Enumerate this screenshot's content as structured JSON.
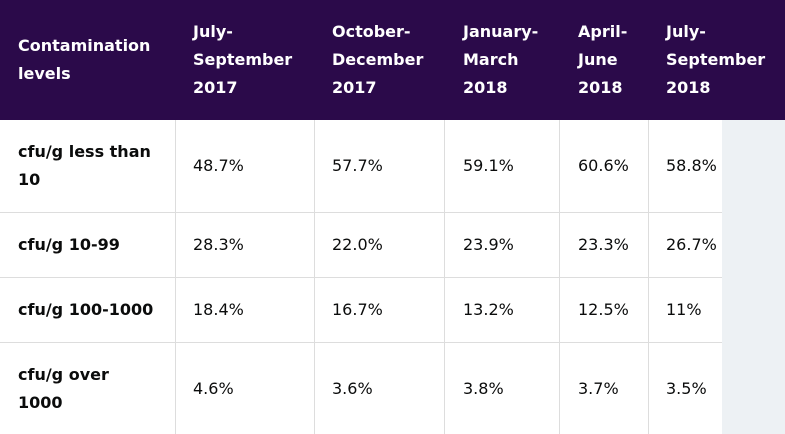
{
  "table": {
    "header": {
      "corner": [
        "Contamination",
        "levels"
      ],
      "columns": [
        [
          "July-",
          "September",
          "2017"
        ],
        [
          "October-",
          "December",
          "2017"
        ],
        [
          "January-",
          "March",
          "2018"
        ],
        [
          "April-",
          "June",
          "2018"
        ],
        [
          "July-",
          "September",
          "2018"
        ]
      ]
    },
    "rows": [
      {
        "label": [
          "cfu/g less than",
          "10"
        ],
        "values": [
          "48.7%",
          "57.7%",
          "59.1%",
          "60.6%",
          "58.8%"
        ]
      },
      {
        "label": [
          "cfu/g 10-99"
        ],
        "values": [
          "28.3%",
          "22.0%",
          "23.9%",
          "23.3%",
          "26.7%"
        ]
      },
      {
        "label": [
          "cfu/g 100-1000"
        ],
        "values": [
          "18.4%",
          "16.7%",
          "13.2%",
          "12.5%",
          "11%"
        ]
      },
      {
        "label": [
          "cfu/g over",
          "1000"
        ],
        "values": [
          "4.6%",
          "3.6%",
          "3.8%",
          "3.7%",
          "3.5%"
        ]
      }
    ]
  },
  "colors": {
    "header_background": "#2b0a4a",
    "header_text": "#ffffff",
    "body_text": "#0b0c0c",
    "grid_line": "#dddddd",
    "scroll_strip": "#edf1f4"
  }
}
